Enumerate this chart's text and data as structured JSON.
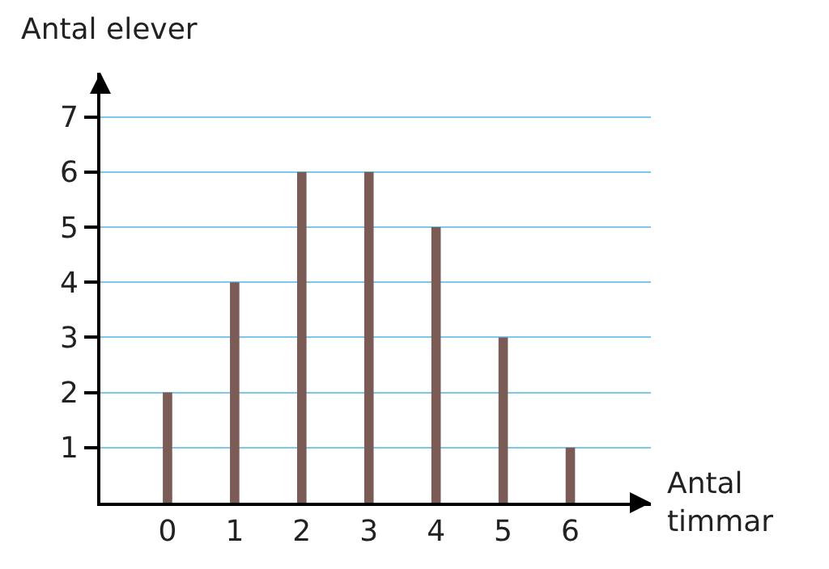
{
  "chart_data": {
    "type": "bar",
    "categories": [
      "0",
      "1",
      "2",
      "3",
      "4",
      "5",
      "6"
    ],
    "values": [
      2,
      4,
      6,
      6,
      5,
      3,
      1
    ],
    "color": "#7b5b55",
    "ylabel": "Antal elever",
    "xlabel": "Antal\ntimmar",
    "ylim": [
      0,
      7.8
    ],
    "yticks": [
      1,
      2,
      3,
      4,
      5,
      6,
      7
    ],
    "grid": "y"
  }
}
